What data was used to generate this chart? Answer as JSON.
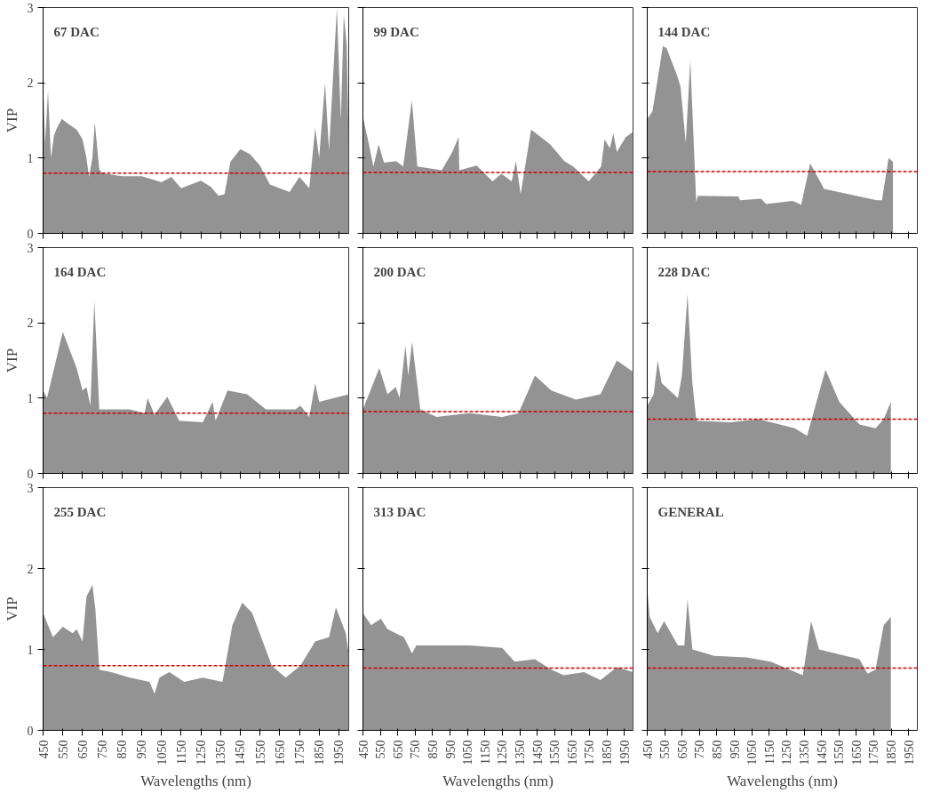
{
  "chart_data": [
    {
      "type": "area",
      "title": "67 DAC",
      "ylabel": "VIP",
      "tick_labels": "y",
      "grid": false,
      "color": "#939393",
      "xlim": [
        450,
        2000
      ],
      "ylim": [
        0,
        3
      ],
      "xticks": [
        450,
        550,
        650,
        750,
        850,
        950,
        1050,
        1150,
        1250,
        1350,
        1450,
        1550,
        1650,
        1750,
        1850,
        1950
      ],
      "yticks": [
        0,
        1,
        2,
        3
      ],
      "x": [
        450,
        460,
        475,
        490,
        505,
        520,
        545,
        580,
        620,
        650,
        670,
        683,
        700,
        712,
        735,
        750,
        850,
        950,
        1000,
        1050,
        1100,
        1150,
        1200,
        1250,
        1300,
        1340,
        1370,
        1400,
        1450,
        1500,
        1550,
        1600,
        1650,
        1700,
        1750,
        1800,
        1830,
        1850,
        1880,
        1900,
        1940,
        1960,
        1975,
        1990,
        2000
      ],
      "values": [
        2.0,
        1.2,
        1.9,
        1.0,
        1.3,
        1.4,
        1.52,
        1.45,
        1.38,
        1.25,
        1.0,
        0.75,
        1.0,
        1.48,
        0.85,
        0.8,
        0.76,
        0.76,
        0.72,
        0.68,
        0.75,
        0.6,
        0.65,
        0.7,
        0.62,
        0.5,
        0.52,
        0.95,
        1.12,
        1.05,
        0.9,
        0.65,
        0.6,
        0.55,
        0.75,
        0.6,
        1.4,
        1.0,
        2.0,
        1.1,
        3.0,
        1.5,
        2.9,
        2.5,
        1.2
      ],
      "ref_lines": [
        {
          "axis": "y",
          "value": 0.8,
          "color": "#cc0000",
          "line_style": "dashed"
        }
      ]
    },
    {
      "type": "area",
      "title": "99 DAC",
      "tick_labels": false,
      "grid": false,
      "color": "#939393",
      "xlim": [
        450,
        2000
      ],
      "ylim": [
        0,
        3
      ],
      "xticks": [
        450,
        550,
        650,
        750,
        850,
        950,
        1050,
        1150,
        1250,
        1350,
        1450,
        1550,
        1650,
        1750,
        1850,
        1950
      ],
      "yticks": [
        0,
        1,
        2,
        3
      ],
      "x": [
        450,
        480,
        510,
        540,
        571,
        641,
        681,
        731,
        762,
        902,
        963,
        999,
        1003,
        1103,
        1194,
        1244,
        1304,
        1328,
        1355,
        1415,
        1525,
        1606,
        1656,
        1746,
        1817,
        1837,
        1867,
        1887,
        1907,
        1958,
        2000
      ],
      "values": [
        1.55,
        1.23,
        0.89,
        1.18,
        0.94,
        0.96,
        0.89,
        1.77,
        0.89,
        0.84,
        1.08,
        1.28,
        0.84,
        0.9,
        0.69,
        0.79,
        0.69,
        0.96,
        0.52,
        1.38,
        1.18,
        0.96,
        0.89,
        0.69,
        0.89,
        1.25,
        1.13,
        1.33,
        1.08,
        1.28,
        1.35
      ],
      "ref_lines": [
        {
          "axis": "y",
          "value": 0.81,
          "color": "#cc0000",
          "line_style": "dashed"
        }
      ]
    },
    {
      "type": "area",
      "title": "144 DAC",
      "tick_labels": false,
      "grid": false,
      "color": "#939393",
      "xlim": [
        450,
        2000
      ],
      "ylim": [
        0,
        3
      ],
      "xticks": [
        450,
        550,
        650,
        750,
        850,
        950,
        1050,
        1150,
        1250,
        1350,
        1450,
        1550,
        1650,
        1750,
        1850,
        1950
      ],
      "yticks": [
        0,
        1,
        2,
        3
      ],
      "x": [
        450,
        480,
        540,
        561,
        621,
        641,
        671,
        697,
        731,
        741,
        973,
        983,
        1103,
        1133,
        1284,
        1334,
        1385,
        1465,
        1566,
        1767,
        1797,
        1835,
        1860
      ],
      "values": [
        1.52,
        1.62,
        2.49,
        2.46,
        2.1,
        1.95,
        1.2,
        2.3,
        0.42,
        0.5,
        0.49,
        0.44,
        0.46,
        0.39,
        0.43,
        0.38,
        0.93,
        0.59,
        0.54,
        0.44,
        0.44,
        1.0,
        0.95
      ],
      "ref_lines": [
        {
          "axis": "y",
          "value": 0.82,
          "color": "#cc0000",
          "line_style": "dashed"
        }
      ]
    },
    {
      "type": "area",
      "title": "164 DAC",
      "ylabel": "VIP",
      "tick_labels": "y",
      "grid": false,
      "color": "#939393",
      "xlim": [
        450,
        2000
      ],
      "ylim": [
        0,
        3
      ],
      "xticks": [
        450,
        550,
        650,
        750,
        850,
        950,
        1050,
        1150,
        1250,
        1350,
        1450,
        1550,
        1650,
        1750,
        1850,
        1950
      ],
      "yticks": [
        0,
        1,
        2,
        3
      ],
      "x": [
        450,
        470,
        550,
        620,
        650,
        670,
        690,
        710,
        735,
        890,
        965,
        980,
        1015,
        1080,
        1140,
        1260,
        1310,
        1325,
        1385,
        1485,
        1580,
        1730,
        1755,
        1800,
        1830,
        1850,
        1925,
        2000
      ],
      "values": [
        1.1,
        1.0,
        1.88,
        1.4,
        1.1,
        1.15,
        0.9,
        2.3,
        0.85,
        0.85,
        0.8,
        1.0,
        0.78,
        1.02,
        0.7,
        0.68,
        0.95,
        0.7,
        1.1,
        1.05,
        0.85,
        0.85,
        0.9,
        0.75,
        1.2,
        0.95,
        1.0,
        1.05
      ],
      "ref_lines": [
        {
          "axis": "y",
          "value": 0.8,
          "color": "#cc0000",
          "line_style": "dashed"
        }
      ]
    },
    {
      "type": "area",
      "title": "200 DAC",
      "tick_labels": false,
      "grid": false,
      "color": "#939393",
      "xlim": [
        450,
        2000
      ],
      "ylim": [
        0,
        3
      ],
      "xticks": [
        450,
        550,
        650,
        750,
        850,
        950,
        1050,
        1150,
        1250,
        1350,
        1450,
        1550,
        1650,
        1750,
        1850,
        1950
      ],
      "yticks": [
        0,
        1,
        2,
        3
      ],
      "x": [
        450,
        544,
        591,
        638,
        660,
        694,
        710,
        732,
        779,
        873,
        1061,
        1249,
        1343,
        1437,
        1531,
        1672,
        1813,
        1907,
        2000
      ],
      "values": [
        0.85,
        1.4,
        1.05,
        1.15,
        1.0,
        1.7,
        1.3,
        1.75,
        0.85,
        0.75,
        0.8,
        0.75,
        0.8,
        1.3,
        1.1,
        0.98,
        1.05,
        1.5,
        1.35
      ],
      "ref_lines": [
        {
          "axis": "y",
          "value": 0.82,
          "color": "#cc0000",
          "line_style": "dashed"
        }
      ]
    },
    {
      "type": "area",
      "title": "228 DAC",
      "tick_labels": false,
      "grid": false,
      "color": "#939393",
      "xlim": [
        450,
        2000
      ],
      "ylim": [
        0,
        3
      ],
      "xticks": [
        450,
        550,
        650,
        750,
        850,
        950,
        1050,
        1150,
        1250,
        1350,
        1450,
        1550,
        1650,
        1750,
        1850,
        1950
      ],
      "yticks": [
        0,
        1,
        2,
        3
      ],
      "x": [
        450,
        487,
        510,
        533,
        626,
        649,
        681,
        709,
        732,
        927,
        1089,
        1297,
        1367,
        1473,
        1552,
        1668,
        1760,
        1807,
        1848
      ],
      "values": [
        0.9,
        1.05,
        1.5,
        1.2,
        1.0,
        1.3,
        2.38,
        1.2,
        0.7,
        0.68,
        0.72,
        0.6,
        0.5,
        1.38,
        0.95,
        0.65,
        0.6,
        0.72,
        0.95
      ],
      "ref_lines": [
        {
          "axis": "y",
          "value": 0.72,
          "color": "#cc0000",
          "line_style": "dashed"
        }
      ]
    },
    {
      "type": "area",
      "title": "255 DAC",
      "xlabel": "Wavelengths (nm)",
      "ylabel": "VIP",
      "grid": false,
      "color": "#939393",
      "xlim": [
        450,
        2000
      ],
      "ylim": [
        0,
        3
      ],
      "xticks": [
        450,
        550,
        650,
        750,
        850,
        950,
        1050,
        1150,
        1250,
        1350,
        1450,
        1550,
        1650,
        1750,
        1850,
        1950
      ],
      "yticks": [
        0,
        1,
        2,
        3
      ],
      "x": [
        450,
        475,
        500,
        550,
        600,
        620,
        650,
        670,
        700,
        715,
        735,
        795,
        890,
        990,
        1015,
        1040,
        1090,
        1165,
        1260,
        1360,
        1410,
        1460,
        1510,
        1610,
        1680,
        1755,
        1830,
        1900,
        1935,
        1985,
        2000
      ],
      "values": [
        1.45,
        1.3,
        1.15,
        1.28,
        1.2,
        1.25,
        1.1,
        1.65,
        1.8,
        1.5,
        0.75,
        0.72,
        0.65,
        0.6,
        0.45,
        0.65,
        0.72,
        0.6,
        0.65,
        0.6,
        1.3,
        1.58,
        1.45,
        0.8,
        0.65,
        0.8,
        1.1,
        1.15,
        1.52,
        1.2,
        0.95
      ],
      "ref_lines": [
        {
          "axis": "y",
          "value": 0.8,
          "color": "#cc0000",
          "line_style": "dashed"
        }
      ]
    },
    {
      "type": "area",
      "title": "313 DAC",
      "xlabel": "Wavelengths (nm)",
      "tick_labels": "x",
      "grid": false,
      "color": "#939393",
      "xlim": [
        450,
        2000
      ],
      "ylim": [
        0,
        3
      ],
      "xticks": [
        450,
        550,
        650,
        750,
        850,
        950,
        1050,
        1150,
        1250,
        1350,
        1450,
        1550,
        1650,
        1750,
        1850,
        1950
      ],
      "yticks": [
        0,
        1,
        2,
        3
      ],
      "x": [
        450,
        497,
        553,
        591,
        685,
        732,
        756,
        1061,
        1249,
        1320,
        1437,
        1531,
        1602,
        1719,
        1813,
        1907,
        2000
      ],
      "values": [
        1.45,
        1.3,
        1.38,
        1.25,
        1.15,
        0.95,
        1.05,
        1.05,
        1.02,
        0.85,
        0.88,
        0.75,
        0.68,
        0.72,
        0.62,
        0.78,
        0.72
      ],
      "ref_lines": [
        {
          "axis": "y",
          "value": 0.77,
          "color": "#cc0000",
          "line_style": "dashed"
        }
      ]
    },
    {
      "type": "area",
      "title": "GENERAL",
      "xlabel": "Wavelengths (nm)",
      "tick_labels": "x",
      "grid": false,
      "color": "#939393",
      "xlim": [
        450,
        2000
      ],
      "ylim": [
        0,
        3
      ],
      "xticks": [
        450,
        550,
        650,
        750,
        850,
        950,
        1050,
        1150,
        1250,
        1350,
        1450,
        1550,
        1650,
        1750,
        1850,
        1950
      ],
      "yticks": [
        0,
        1,
        2,
        3
      ],
      "x": [
        450,
        464,
        510,
        547,
        626,
        663,
        681,
        709,
        834,
        1019,
        1158,
        1343,
        1390,
        1436,
        1529,
        1668,
        1714,
        1760,
        1807,
        1848
      ],
      "values": [
        1.75,
        1.4,
        1.2,
        1.35,
        1.05,
        1.05,
        1.62,
        1.0,
        0.92,
        0.9,
        0.85,
        0.68,
        1.35,
        1.0,
        0.95,
        0.88,
        0.7,
        0.75,
        1.3,
        1.4
      ],
      "ref_lines": [
        {
          "axis": "y",
          "value": 0.77,
          "color": "#cc0000",
          "line_style": "dashed"
        }
      ]
    }
  ]
}
